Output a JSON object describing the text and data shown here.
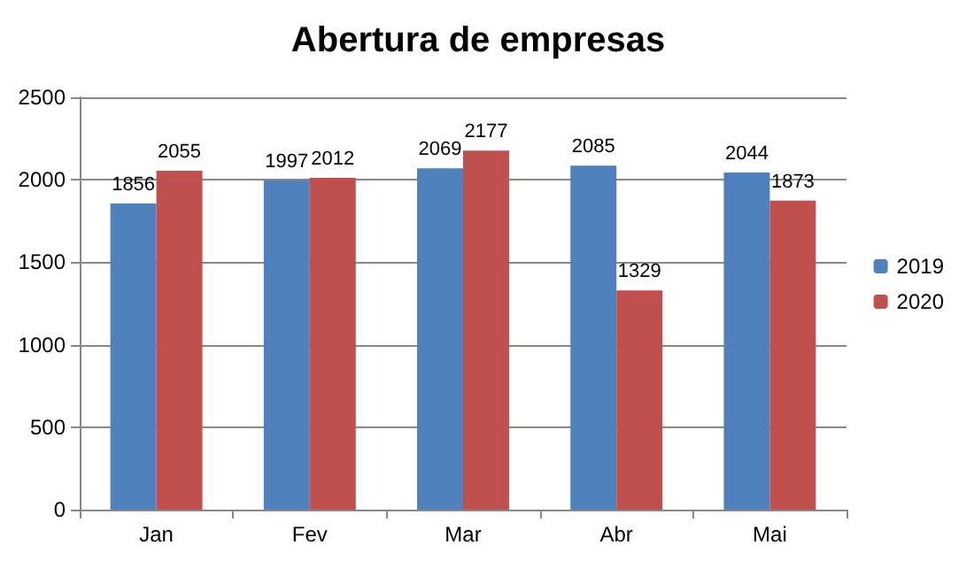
{
  "chart_data": {
    "type": "bar",
    "title": "Abertura de empresas",
    "categories": [
      "Jan",
      "Fev",
      "Mar",
      "Abr",
      "Mai"
    ],
    "series": [
      {
        "name": "2019",
        "color": "#4f81bd",
        "values": [
          1856,
          1997,
          2069,
          2085,
          2044
        ]
      },
      {
        "name": "2020",
        "color": "#c0504d",
        "values": [
          2055,
          2012,
          2177,
          1329,
          1873
        ]
      }
    ],
    "ylim": [
      0,
      2500
    ],
    "yticks": [
      0,
      500,
      1000,
      1500,
      2000,
      2500
    ],
    "grid": "y",
    "legend": "right",
    "data_labels": true
  }
}
